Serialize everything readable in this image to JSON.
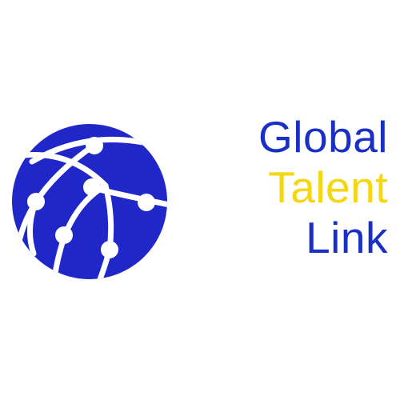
{
  "logo": {
    "icon": "globe-network-icon",
    "colors": {
      "globe": "#1f27c9",
      "lines": "#ffffff",
      "text_primary": "#1a2fc4",
      "text_accent": "#f5d60f"
    },
    "wordmark": {
      "line1": "Global",
      "line2": "Talent",
      "line3": "Link"
    }
  }
}
